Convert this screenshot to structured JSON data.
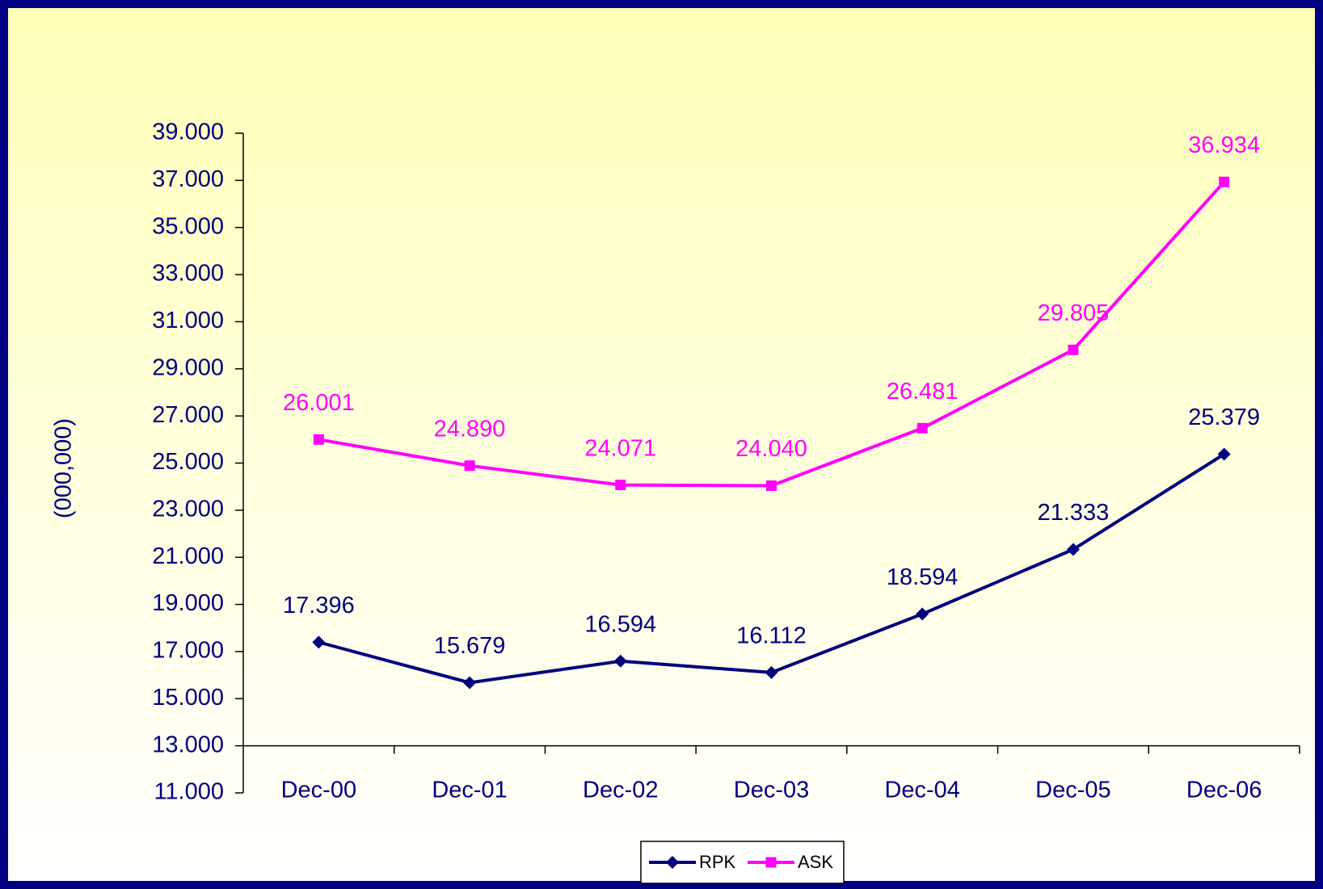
{
  "chart_data": {
    "type": "line",
    "y_label": "(000,000)",
    "categories": [
      "Dec-00",
      "Dec-01",
      "Dec-02",
      "Dec-03",
      "Dec-04",
      "Dec-05",
      "Dec-06"
    ],
    "series": [
      {
        "name": "RPK",
        "color": "#000080",
        "marker": "diamond",
        "values": [
          17.396,
          15.679,
          16.594,
          16.112,
          18.594,
          21.333,
          25.379
        ],
        "value_labels": [
          "17.396",
          "15.679",
          "16.594",
          "16.112",
          "18.594",
          "21.333",
          "25.379"
        ]
      },
      {
        "name": "ASK",
        "color": "#ff00ff",
        "marker": "square",
        "values": [
          26.001,
          24.89,
          24.071,
          24.04,
          26.481,
          29.805,
          36.934
        ],
        "value_labels": [
          "26.001",
          "24.890",
          "24.071",
          "24.040",
          "26.481",
          "29.805",
          "36.934"
        ]
      }
    ],
    "ylim": [
      11,
      39
    ],
    "x_axis_crosses": 13,
    "yticks": [
      {
        "value": 11,
        "label": "11.000"
      },
      {
        "value": 13,
        "label": "13.000"
      },
      {
        "value": 15,
        "label": "15.000"
      },
      {
        "value": 17,
        "label": "17.000"
      },
      {
        "value": 19,
        "label": "19.000"
      },
      {
        "value": 21,
        "label": "21.000"
      },
      {
        "value": 23,
        "label": "23.000"
      },
      {
        "value": 25,
        "label": "25.000"
      },
      {
        "value": 27,
        "label": "27.000"
      },
      {
        "value": 29,
        "label": "29.000"
      },
      {
        "value": 31,
        "label": "31.000"
      },
      {
        "value": 33,
        "label": "33.000"
      },
      {
        "value": 35,
        "label": "35.000"
      },
      {
        "value": 37,
        "label": "37.000"
      },
      {
        "value": 39,
        "label": "39.000"
      }
    ],
    "grid": false,
    "legend": "bottom"
  }
}
